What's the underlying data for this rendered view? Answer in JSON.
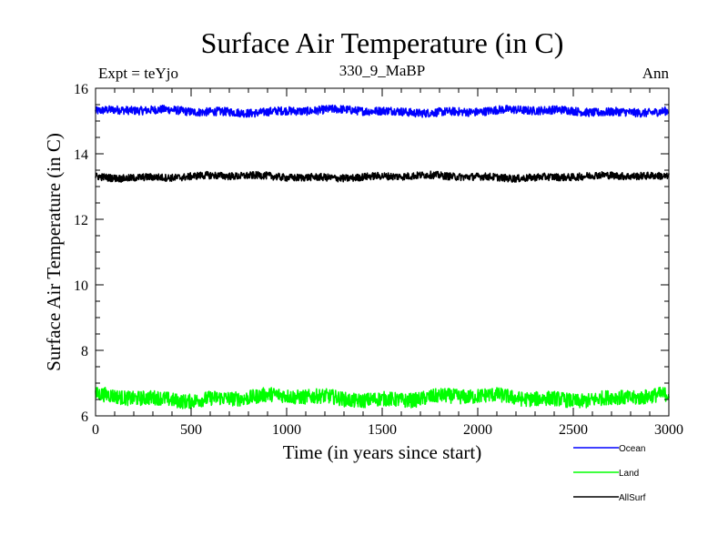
{
  "chart_data": {
    "type": "line",
    "title": "Surface Air Temperature (in C)",
    "subtitle_left": "Expt = teYjo",
    "subtitle_center": "330_9_MaBP",
    "subtitle_right": "Ann",
    "xlabel": "Time (in years since start)",
    "ylabel": "Surface Air Temperature (in C)",
    "xlim": [
      0,
      3000
    ],
    "ylim": [
      6,
      16
    ],
    "x_ticks": [
      0,
      500,
      1000,
      1500,
      2000,
      2500,
      3000
    ],
    "y_ticks": [
      6,
      8,
      10,
      12,
      14,
      16
    ],
    "legend_position": "bottom-right",
    "series": [
      {
        "name": "Ocean",
        "color": "#0000ff",
        "mean": 15.3,
        "noise": 0.08
      },
      {
        "name": "Land",
        "color": "#00ff00",
        "mean": 6.55,
        "noise": 0.14
      },
      {
        "name": "AllSurf",
        "color": "#000000",
        "mean": 13.3,
        "noise": 0.07
      }
    ]
  }
}
